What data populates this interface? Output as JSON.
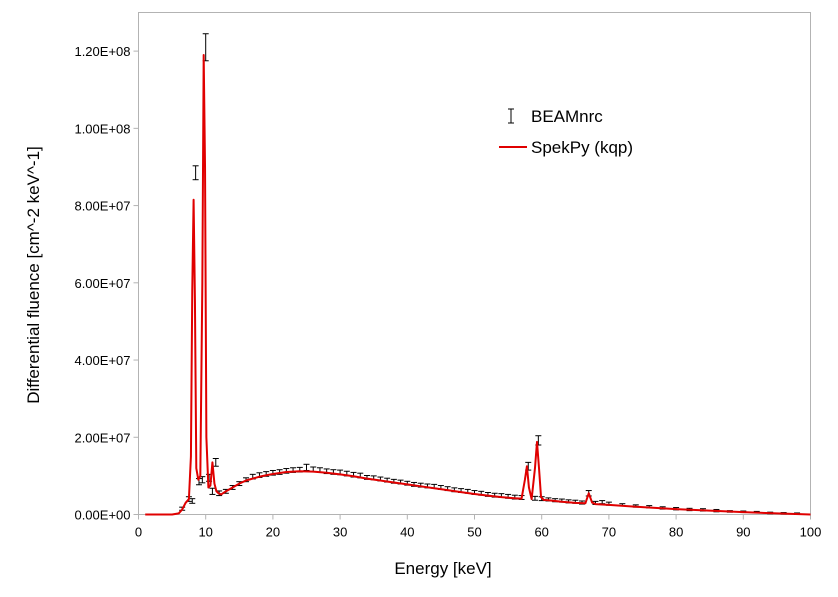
{
  "chart_data": {
    "type": "line",
    "title": "",
    "xlabel": "Energy  [keV]",
    "ylabel": "Differential fluence  [cm^-2 keV^-1]",
    "xlim": [
      0,
      100
    ],
    "ylim": [
      0,
      130000000
    ],
    "x_ticks": [
      0,
      10,
      20,
      30,
      40,
      50,
      60,
      70,
      80,
      90,
      100
    ],
    "x_tick_labels": [
      "0",
      "10",
      "20",
      "30",
      "40",
      "50",
      "60",
      "70",
      "80",
      "90",
      "100"
    ],
    "y_ticks": [
      0,
      20000000,
      40000000,
      60000000,
      80000000,
      100000000,
      120000000
    ],
    "y_tick_labels": [
      "0.00E+00",
      "2.00E+07",
      "4.00E+07",
      "6.00E+07",
      "8.00E+07",
      "1.00E+08",
      "1.20E+08"
    ],
    "grid": false,
    "legend_position": "top-right",
    "colors": {
      "spekpy": "#e00000",
      "beamnrc": "#000000",
      "frame": "#b3b3b3"
    },
    "series": [
      {
        "name": "BEAMnrc",
        "style": "errorbar",
        "x": [
          6.5,
          7.5,
          8.0,
          8.5,
          9.0,
          9.5,
          10.0,
          10.5,
          11.0,
          11.5,
          12.0,
          13,
          14,
          15,
          16,
          17,
          18,
          19,
          20,
          21,
          22,
          23,
          24,
          25,
          26,
          27,
          28,
          29,
          30,
          31,
          32,
          33,
          34,
          35,
          36,
          37,
          38,
          39,
          40,
          41,
          42,
          43,
          44,
          45,
          46,
          47,
          48,
          49,
          50,
          51,
          52,
          53,
          54,
          55,
          56,
          57,
          58,
          59,
          59.5,
          60,
          61,
          62,
          63,
          64,
          65,
          66,
          67,
          68,
          69,
          70,
          72,
          74,
          76,
          78,
          80,
          82,
          84,
          86,
          88,
          90,
          92,
          94,
          96,
          98
        ],
        "y": [
          1500000,
          4000000,
          3500000,
          88500000,
          8500000,
          9000000,
          121000000,
          9500000,
          6000000,
          13500000,
          5500000,
          6000000,
          7000000,
          8000000,
          9000000,
          9800000,
          10200000,
          10500000,
          10800000,
          11000000,
          11300000,
          11500000,
          11600000,
          12200000,
          11700000,
          11500000,
          11200000,
          11000000,
          10900000,
          10600000,
          10300000,
          10100000,
          9600000,
          9500000,
          9200000,
          8900000,
          8600000,
          8400000,
          8100000,
          7800000,
          7600000,
          7400000,
          7300000,
          7000000,
          6700000,
          6400000,
          6200000,
          6000000,
          5700000,
          5500000,
          5200000,
          5000000,
          4900000,
          4700000,
          4500000,
          4400000,
          12500000,
          4200000,
          19200000,
          4100000,
          3900000,
          3700000,
          3600000,
          3400000,
          3300000,
          3100000,
          5500000,
          3000000,
          3200000,
          2800000,
          2500000,
          2200000,
          2000000,
          1700000,
          1500000,
          1300000,
          1200000,
          1000000,
          800000,
          700000,
          600000,
          400000,
          300000,
          200000
        ],
        "err": [
          400000,
          600000,
          600000,
          1800000,
          800000,
          800000,
          3500000,
          900000,
          800000,
          1000000,
          600000,
          500000,
          500000,
          500000,
          500000,
          600000,
          600000,
          600000,
          600000,
          600000,
          600000,
          600000,
          600000,
          800000,
          600000,
          600000,
          600000,
          600000,
          600000,
          600000,
          600000,
          600000,
          500000,
          500000,
          500000,
          500000,
          500000,
          500000,
          500000,
          500000,
          500000,
          500000,
          500000,
          500000,
          500000,
          500000,
          500000,
          500000,
          500000,
          500000,
          500000,
          500000,
          500000,
          500000,
          500000,
          500000,
          1000000,
          500000,
          1200000,
          500000,
          400000,
          400000,
          400000,
          400000,
          400000,
          400000,
          700000,
          400000,
          400000,
          400000,
          300000,
          300000,
          300000,
          300000,
          300000,
          300000,
          300000,
          300000,
          200000,
          200000,
          200000,
          200000,
          200000,
          200000
        ]
      },
      {
        "name": "SpekPy (kqp)",
        "style": "line",
        "x": [
          1,
          5,
          6,
          6.5,
          7,
          7.5,
          7.8,
          8.0,
          8.2,
          8.4,
          8.6,
          8.9,
          9.2,
          9.5,
          9.7,
          9.9,
          10.1,
          10.4,
          10.7,
          11.0,
          11.3,
          11.6,
          11.9,
          12.3,
          13,
          14,
          15,
          16,
          18,
          20,
          22,
          24,
          26,
          28,
          30,
          32,
          34,
          36,
          38,
          40,
          42,
          44,
          46,
          48,
          50,
          52,
          54,
          56,
          57.0,
          57.5,
          57.8,
          58.1,
          58.5,
          59.0,
          59.3,
          59.6,
          59.9,
          60.3,
          61,
          63,
          65,
          66.5,
          67.0,
          67.5,
          68,
          70,
          75,
          80,
          85,
          90,
          95,
          100
        ],
        "y": [
          0,
          0,
          300000,
          1300000,
          3000000,
          4000000,
          15000000,
          58000000,
          81500000,
          55000000,
          12000000,
          9000000,
          10000000,
          60000000,
          119000000,
          90000000,
          20000000,
          7000000,
          7500000,
          13500000,
          8000000,
          6000000,
          5500000,
          5200000,
          6000000,
          7000000,
          8000000,
          8800000,
          9800000,
          10500000,
          11000000,
          11200000,
          11100000,
          10800000,
          10400000,
          9900000,
          9300000,
          8800000,
          8300000,
          7800000,
          7300000,
          6800000,
          6300000,
          5800000,
          5300000,
          4900000,
          4500000,
          4200000,
          4100000,
          9000000,
          12500000,
          7000000,
          4000000,
          12000000,
          18800000,
          12000000,
          4500000,
          3800000,
          3700000,
          3300000,
          3000000,
          2900000,
          5500000,
          3100000,
          2700000,
          2500000,
          1900000,
          1400000,
          1000000,
          600000,
          300000,
          0
        ]
      }
    ]
  }
}
